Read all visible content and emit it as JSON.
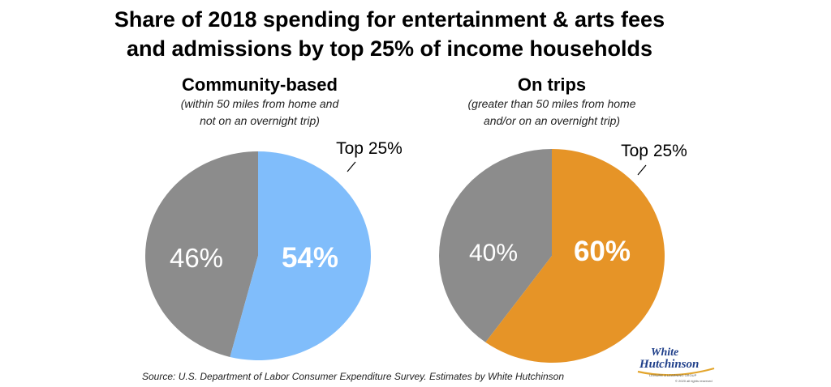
{
  "title_lines": [
    "Share of 2018 spending for entertainment & arts fees",
    "and admissions by top 25% of income households"
  ],
  "charts": [
    {
      "title": "Community-based",
      "subtitle_lines": [
        "(within 50 miles from home and",
        "not on an overnight trip)"
      ],
      "top_label": "Top 25%",
      "other_label": "46%",
      "highlight_label": "54%"
    },
    {
      "title": "On trips",
      "subtitle_lines": [
        "(greater than 50 miles from home",
        "and/or on an overnight trip)"
      ],
      "top_label": "Top 25%",
      "other_label": "40%",
      "highlight_label": "60%"
    }
  ],
  "colors": {
    "other": "#8c8c8c",
    "community_highlight": "#80bdfb",
    "trips_highlight": "#e69427"
  },
  "source": "Source: U.S. Department of Labor Consumer Expenditure Survey. Estimates by White Hutchinson",
  "logo": {
    "line1": "White",
    "line2": "Hutchinson",
    "tagline": "LEISURE & LEARNING GROUP",
    "copyright": "© 2020 all rights reserved"
  },
  "chart_data": [
    {
      "type": "pie",
      "title": "Community-based",
      "categories": [
        "Top 25%",
        ""
      ],
      "values": [
        54,
        46
      ]
    },
    {
      "type": "pie",
      "title": "On trips",
      "categories": [
        "Top 25%",
        ""
      ],
      "values": [
        60,
        40
      ]
    }
  ]
}
